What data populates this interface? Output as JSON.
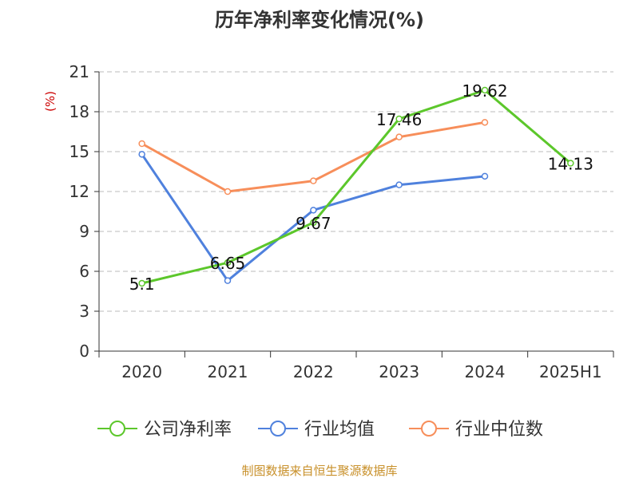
{
  "chart_data": {
    "type": "line",
    "title": "历年净利率变化情况(%)",
    "ylabel": "(%)",
    "categories": [
      "2020",
      "2021",
      "2022",
      "2023",
      "2024",
      "2025H1"
    ],
    "ylim": [
      0,
      21
    ],
    "yticks": [
      0,
      3,
      6,
      9,
      12,
      15,
      18,
      21
    ],
    "grid": true,
    "legend_position": "bottom",
    "series": [
      {
        "name": "公司净利率",
        "color": "#5cc72b",
        "values": [
          5.1,
          6.65,
          9.67,
          17.46,
          19.62,
          14.13
        ],
        "labels": [
          "5.1",
          "6.65",
          "9.67",
          "17.46",
          "19.62",
          "14.13"
        ]
      },
      {
        "name": "行业均值",
        "color": "#4f81dd",
        "values": [
          14.8,
          5.3,
          10.6,
          12.5,
          13.15,
          null
        ]
      },
      {
        "name": "行业中位数",
        "color": "#f78e5a",
        "values": [
          15.6,
          12.0,
          12.8,
          16.1,
          17.2,
          null
        ]
      }
    ]
  },
  "footer": {
    "source": "制图数据来自恒生聚源数据库"
  },
  "colors": {
    "title": "#333333",
    "axis": "#333333",
    "grid": "#bbbbbb",
    "ylabel": "#cc0000",
    "source": "#c8902a"
  }
}
